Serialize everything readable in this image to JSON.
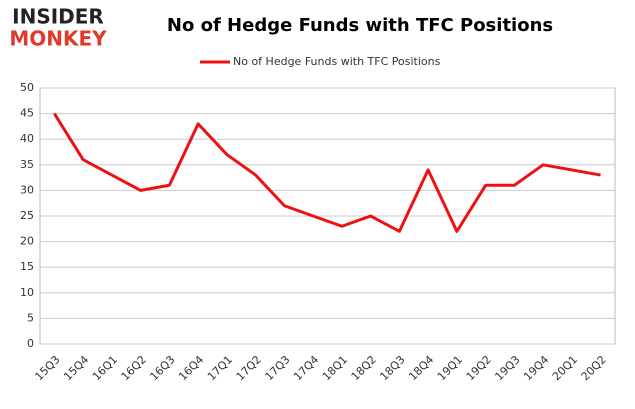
{
  "logo": {
    "line1": "INSIDER",
    "line2": "MONKEY"
  },
  "chart_data": {
    "type": "line",
    "title": "No of Hedge Funds with TFC Positions",
    "categories": [
      "15Q3",
      "15Q4",
      "16Q1",
      "16Q2",
      "16Q3",
      "16Q4",
      "17Q1",
      "17Q2",
      "17Q3",
      "17Q4",
      "18Q1",
      "18Q2",
      "18Q3",
      "18Q4",
      "19Q1",
      "19Q2",
      "19Q3",
      "19Q4",
      "20Q1",
      "20Q2"
    ],
    "series": [
      {
        "name": "No of Hedge Funds with TFC Positions",
        "color": "#ee1111",
        "values": [
          45,
          36,
          33,
          30,
          31,
          43,
          37,
          33,
          27,
          25,
          23,
          25,
          22,
          34,
          22,
          31,
          31,
          35,
          34,
          33
        ]
      }
    ],
    "ylim": [
      0,
      50
    ],
    "yticks": [
      0,
      5,
      10,
      15,
      20,
      25,
      30,
      35,
      40,
      45,
      50
    ],
    "grid": true,
    "legend": "top"
  }
}
